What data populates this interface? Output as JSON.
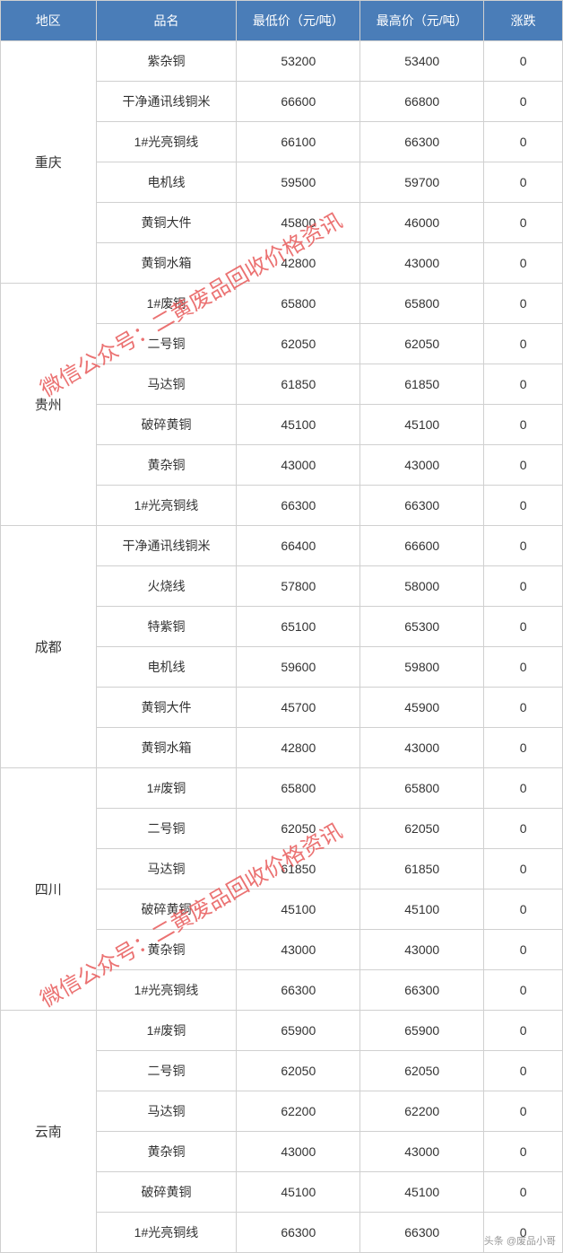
{
  "table": {
    "header_bg": "#4a7db8",
    "header_color": "#ffffff",
    "cell_bg": "#ffffff",
    "border_color": "#d0d0d0",
    "font_size": 14,
    "columns": [
      {
        "label": "地区",
        "width": "17%"
      },
      {
        "label": "品名",
        "width": "25%"
      },
      {
        "label": "最低价（元/吨）",
        "width": "22%"
      },
      {
        "label": "最高价（元/吨）",
        "width": "22%"
      },
      {
        "label": "涨跌",
        "width": "14%"
      }
    ],
    "groups": [
      {
        "region": "重庆",
        "rows": [
          {
            "name": "紫杂铜",
            "low": "53200",
            "high": "53400",
            "change": "0"
          },
          {
            "name": "干净通讯线铜米",
            "low": "66600",
            "high": "66800",
            "change": "0"
          },
          {
            "name": "1#光亮铜线",
            "low": "66100",
            "high": "66300",
            "change": "0"
          },
          {
            "name": "电机线",
            "low": "59500",
            "high": "59700",
            "change": "0"
          },
          {
            "name": "黄铜大件",
            "low": "45800",
            "high": "46000",
            "change": "0"
          },
          {
            "name": "黄铜水箱",
            "low": "42800",
            "high": "43000",
            "change": "0"
          }
        ]
      },
      {
        "region": "贵州",
        "rows": [
          {
            "name": "1#废铜",
            "low": "65800",
            "high": "65800",
            "change": "0"
          },
          {
            "name": "二号铜",
            "low": "62050",
            "high": "62050",
            "change": "0"
          },
          {
            "name": "马达铜",
            "low": "61850",
            "high": "61850",
            "change": "0"
          },
          {
            "name": "破碎黄铜",
            "low": "45100",
            "high": "45100",
            "change": "0"
          },
          {
            "name": "黄杂铜",
            "low": "43000",
            "high": "43000",
            "change": "0"
          },
          {
            "name": "1#光亮铜线",
            "low": "66300",
            "high": "66300",
            "change": "0"
          }
        ]
      },
      {
        "region": "成都",
        "rows": [
          {
            "name": "干净通讯线铜米",
            "low": "66400",
            "high": "66600",
            "change": "0"
          },
          {
            "name": "火烧线",
            "low": "57800",
            "high": "58000",
            "change": "0"
          },
          {
            "name": "特紫铜",
            "low": "65100",
            "high": "65300",
            "change": "0"
          },
          {
            "name": "电机线",
            "low": "59600",
            "high": "59800",
            "change": "0"
          },
          {
            "name": "黄铜大件",
            "low": "45700",
            "high": "45900",
            "change": "0"
          },
          {
            "name": "黄铜水箱",
            "low": "42800",
            "high": "43000",
            "change": "0"
          }
        ]
      },
      {
        "region": "四川",
        "rows": [
          {
            "name": "1#废铜",
            "low": "65800",
            "high": "65800",
            "change": "0"
          },
          {
            "name": "二号铜",
            "low": "62050",
            "high": "62050",
            "change": "0"
          },
          {
            "name": "马达铜",
            "low": "61850",
            "high": "61850",
            "change": "0"
          },
          {
            "name": "破碎黄铜",
            "low": "45100",
            "high": "45100",
            "change": "0"
          },
          {
            "name": "黄杂铜",
            "low": "43000",
            "high": "43000",
            "change": "0"
          },
          {
            "name": "1#光亮铜线",
            "low": "66300",
            "high": "66300",
            "change": "0"
          }
        ]
      },
      {
        "region": "云南",
        "rows": [
          {
            "name": "1#废铜",
            "low": "65900",
            "high": "65900",
            "change": "0"
          },
          {
            "name": "二号铜",
            "low": "62050",
            "high": "62050",
            "change": "0"
          },
          {
            "name": "马达铜",
            "low": "62200",
            "high": "62200",
            "change": "0"
          },
          {
            "name": "黄杂铜",
            "low": "43000",
            "high": "43000",
            "change": "0"
          },
          {
            "name": "破碎黄铜",
            "low": "45100",
            "high": "45100",
            "change": "0"
          },
          {
            "name": "1#光亮铜线",
            "low": "66300",
            "high": "66300",
            "change": "0"
          }
        ]
      }
    ]
  },
  "watermark": {
    "text": "微信公众号：二黄废品回收价格资讯",
    "color": "#e85a5a",
    "font_size": 24,
    "rotation_deg": -30
  },
  "footer": {
    "text": "头条 @废品小哥",
    "color": "#999999",
    "font_size": 11
  }
}
